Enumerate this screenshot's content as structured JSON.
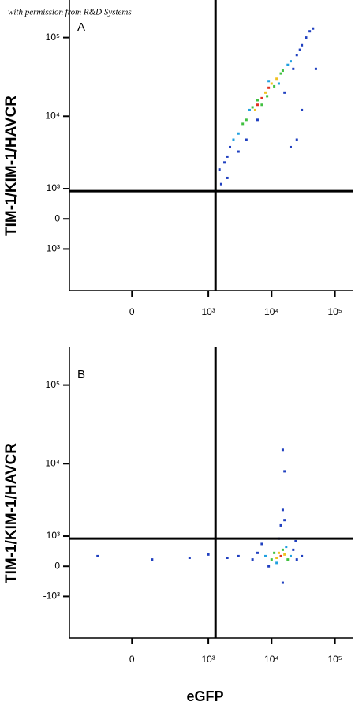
{
  "credit": "with permission from R&D Systems",
  "chart_data": [
    {
      "type": "scatter",
      "panel_label": "A",
      "y_label": "TIM-1/KIM-1/HAVCR",
      "xlim": [
        -600,
        190000
      ],
      "ylim": [
        -4000,
        300000
      ],
      "xticks": [
        0,
        {
          "value": 1000,
          "label": "10³"
        },
        {
          "value": 10000,
          "label": "10⁴"
        },
        {
          "value": 100000,
          "label": "10⁵"
        }
      ],
      "yticks": [
        {
          "value": -1000,
          "label": "-10³"
        },
        0,
        {
          "value": 1000,
          "label": "10³"
        },
        {
          "value": 10000,
          "label": "10⁴"
        },
        {
          "value": 100000,
          "label": "10⁵"
        }
      ],
      "gates": {
        "x": 1300,
        "y": 900
      },
      "x": [
        6000,
        7000,
        8000,
        9000,
        5500,
        10000,
        12000,
        4000,
        3500,
        5000,
        7000,
        11000,
        14000,
        15000,
        6000,
        8500,
        3000,
        2500,
        18000,
        20000,
        4500,
        9000,
        13000,
        2000,
        1800,
        2200,
        1500,
        25000,
        30000,
        35000,
        40000,
        22000,
        3000,
        1600,
        2000,
        20000,
        25000,
        30000,
        50000,
        45000,
        28000,
        4000,
        6000,
        16000
      ],
      "y": [
        14000,
        17000,
        20000,
        23000,
        12000,
        26000,
        30000,
        9000,
        8000,
        13000,
        14000,
        24000,
        35000,
        38000,
        16000,
        18000,
        6000,
        5000,
        45000,
        50000,
        12000,
        28000,
        26000,
        3000,
        2500,
        4000,
        2000,
        60000,
        80000,
        100000,
        120000,
        40000,
        3500,
        1200,
        1500,
        4000,
        5000,
        12000,
        40000,
        130000,
        70000,
        5000,
        9000,
        20000
      ],
      "colors": [
        "#e03020",
        "#e03020",
        "#f0c020",
        "#e03020",
        "#f0c020",
        "#f0c020",
        "#f0c020",
        "#40c040",
        "#40c040",
        "#40c040",
        "#40c040",
        "#40c040",
        "#40c040",
        "#40c040",
        "#40c040",
        "#40c040",
        "#20a0e0",
        "#20a0e0",
        "#20a0e0",
        "#20a0e0",
        "#20a0e0",
        "#20a0e0",
        "#20a0e0",
        "#2040c0",
        "#2040c0",
        "#2040c0",
        "#2040c0",
        "#2040c0",
        "#2040c0",
        "#2040c0",
        "#2040c0",
        "#2040c0",
        "#2040c0",
        "#2040c0",
        "#2040c0",
        "#2040c0",
        "#2040c0",
        "#2040c0",
        "#2040c0",
        "#2040c0",
        "#2040c0",
        "#2040c0",
        "#2040c0",
        "#2040c0"
      ]
    },
    {
      "type": "scatter",
      "panel_label": "B",
      "y_label": "TIM-1/KIM-1/HAVCR",
      "x_label": "eGFP",
      "xlim": [
        -600,
        190000
      ],
      "ylim": [
        -4000,
        300000
      ],
      "xticks": [
        0,
        {
          "value": 1000,
          "label": "10³"
        },
        {
          "value": 10000,
          "label": "10⁴"
        },
        {
          "value": 100000,
          "label": "10⁵"
        }
      ],
      "yticks": [
        {
          "value": -1000,
          "label": "-10³"
        },
        0,
        {
          "value": 1000,
          "label": "10³"
        },
        {
          "value": 10000,
          "label": "10⁴"
        },
        {
          "value": 100000,
          "label": "10⁵"
        }
      ],
      "gates": {
        "x": 1300,
        "y": 900
      },
      "x": [
        14000,
        12000,
        16000,
        13000,
        10000,
        18000,
        15000,
        11000,
        8000,
        20000,
        12000,
        17000,
        5000,
        6000,
        3000,
        25000,
        22000,
        9000,
        15000,
        2000,
        500,
        100,
        -200,
        30000,
        14000,
        15000,
        16000,
        15000,
        16000,
        13000,
        7000,
        24000,
        1000
      ],
      "y": [
        300,
        250,
        350,
        400,
        200,
        200,
        500,
        400,
        300,
        300,
        100,
        600,
        200,
        400,
        300,
        200,
        500,
        0,
        -500,
        250,
        250,
        200,
        300,
        300,
        1500,
        2500,
        1800,
        15000,
        8000,
        900,
        700,
        800,
        350
      ],
      "colors": [
        "#e03020",
        "#f0c020",
        "#f0c020",
        "#f0c020",
        "#40c040",
        "#40c040",
        "#40c040",
        "#40c040",
        "#20a0e0",
        "#20a0e0",
        "#20a0e0",
        "#20a0e0",
        "#2040c0",
        "#2040c0",
        "#2040c0",
        "#2040c0",
        "#2040c0",
        "#2040c0",
        "#2040c0",
        "#2040c0",
        "#2040c0",
        "#2040c0",
        "#2040c0",
        "#2040c0",
        "#2040c0",
        "#2040c0",
        "#2040c0",
        "#2040c0",
        "#2040c0",
        "#2040c0",
        "#2040c0",
        "#2040c0",
        "#2040c0"
      ]
    }
  ]
}
